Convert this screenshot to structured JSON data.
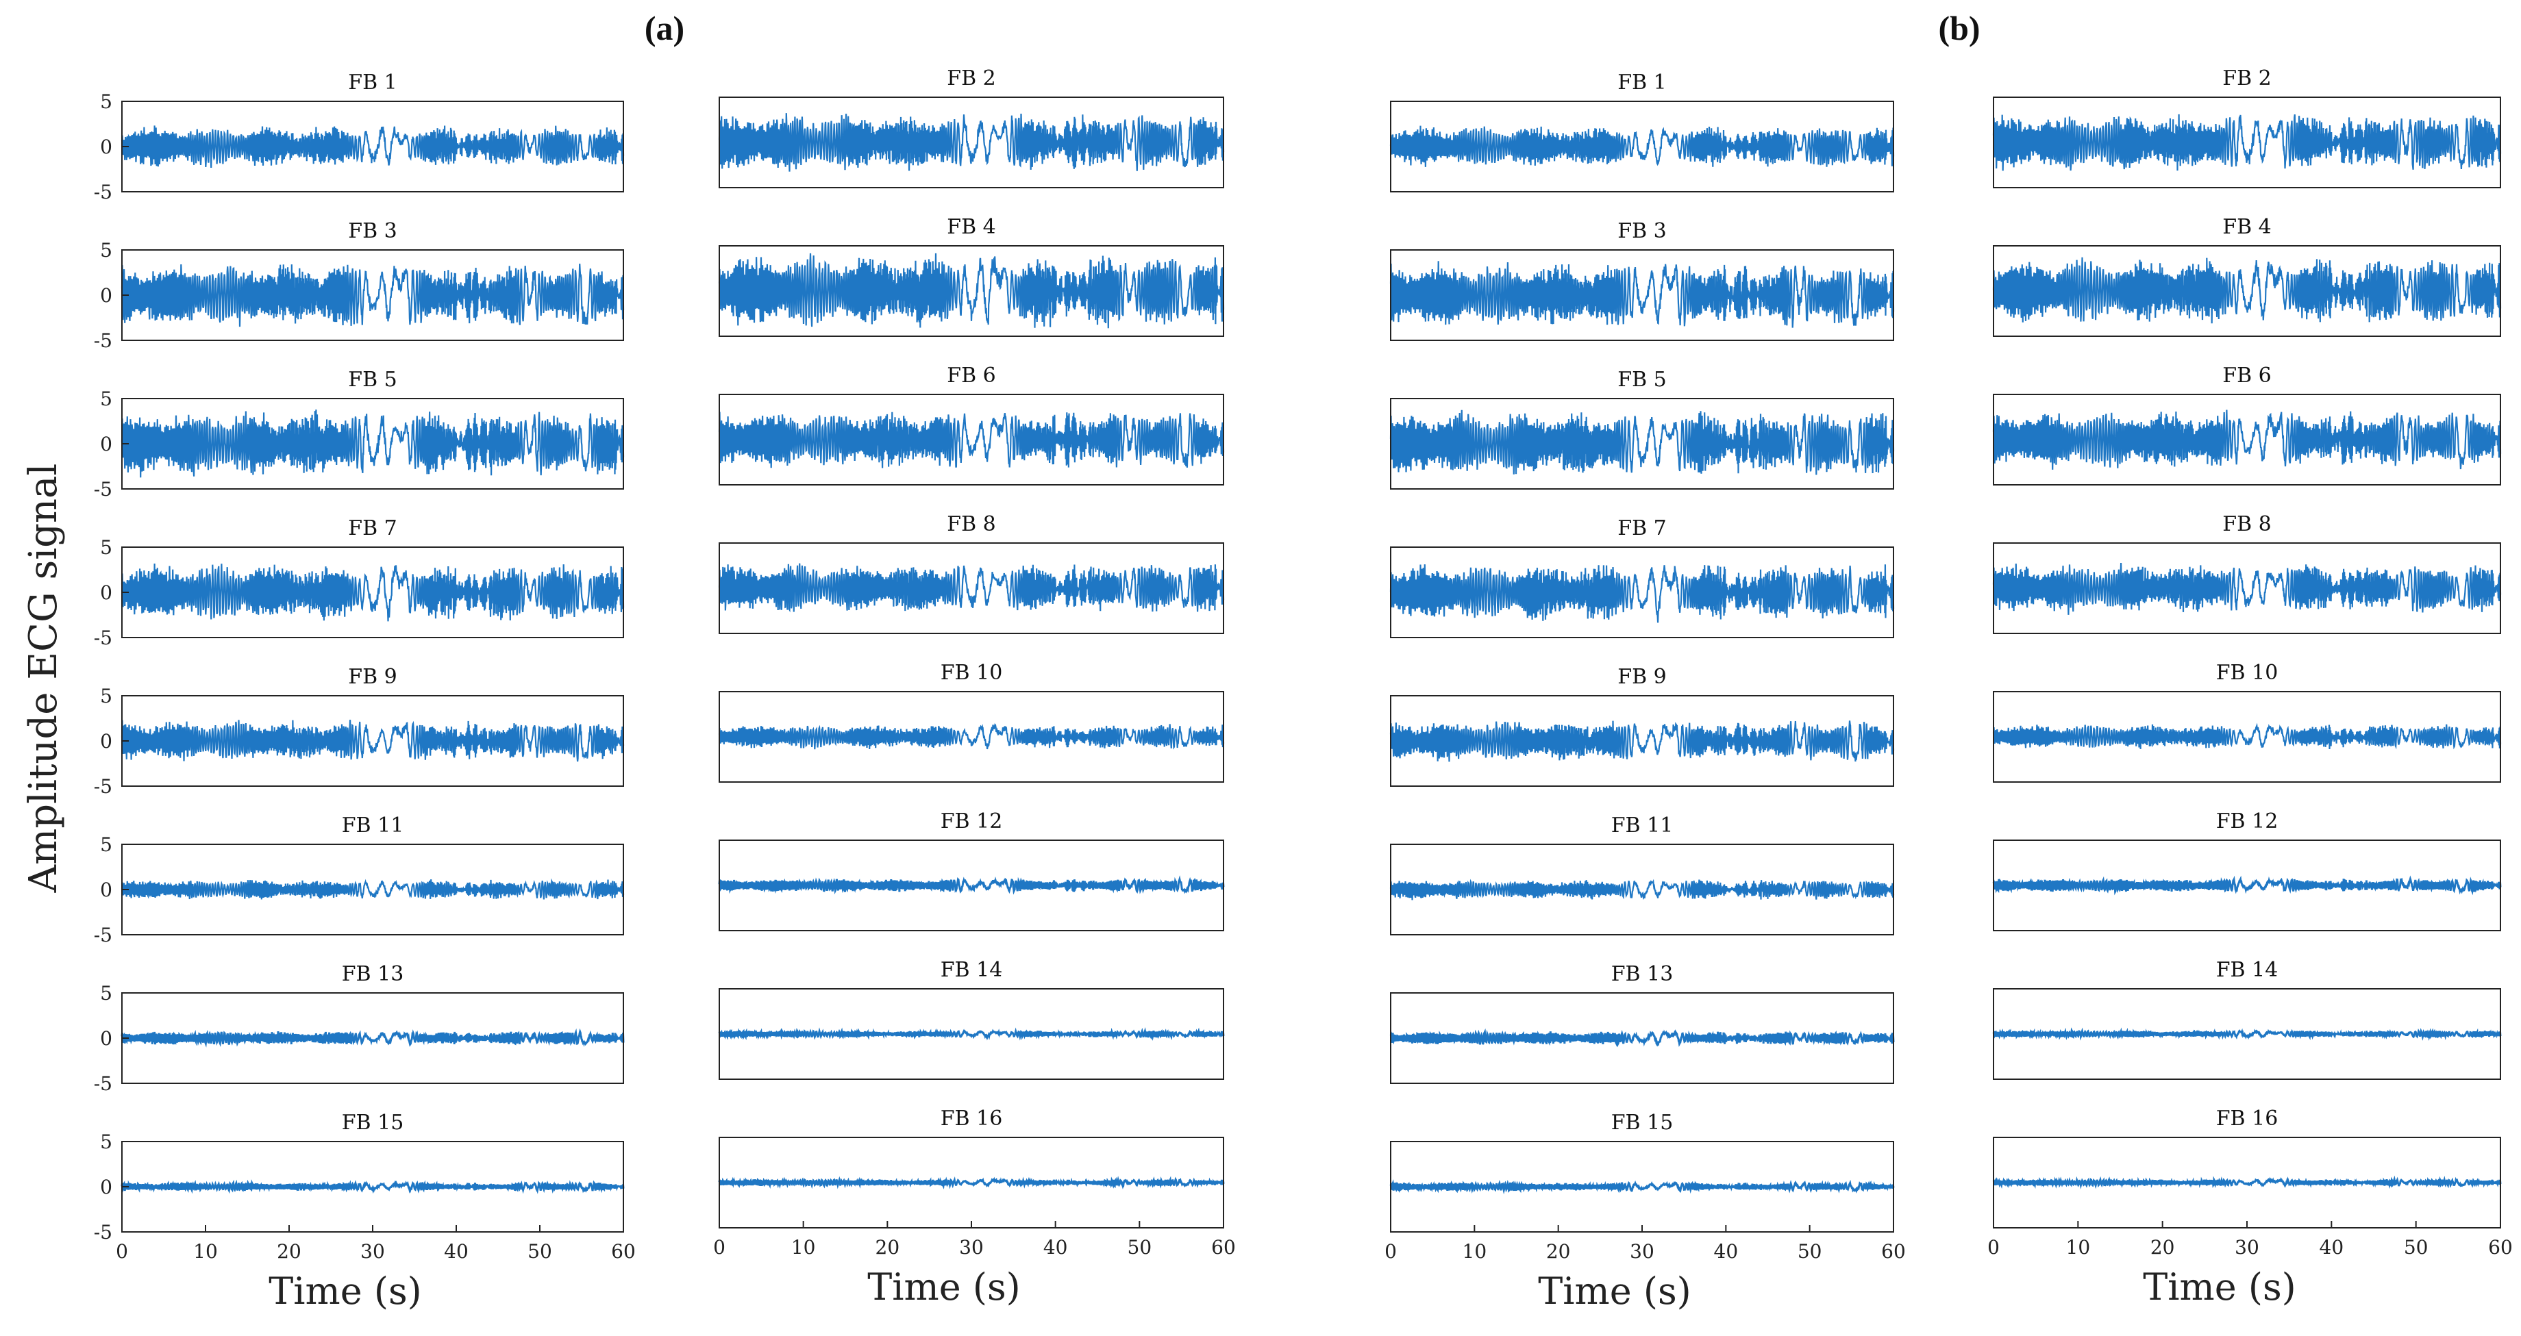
{
  "figure": {
    "panel_a_label": "(a)",
    "panel_b_label": "(b)",
    "ylabel": "Amplitude ECG signal",
    "xlabel": "Time (s)",
    "line_color": "#1f77c4"
  },
  "chart_data": {
    "type": "line",
    "xlabel": "Time (s)",
    "ylabel": "Amplitude ECG signal",
    "xlim": [
      0,
      60
    ],
    "ylim": [
      -5,
      5
    ],
    "xticks": [
      "0",
      "10",
      "20",
      "30",
      "40",
      "50",
      "60"
    ],
    "yticks": [
      "5",
      "0",
      "-5"
    ],
    "grid": false,
    "panels": [
      {
        "label": "(a)",
        "subplots": [
          {
            "title": "FB 1",
            "amplitude": 2.5
          },
          {
            "title": "FB 2",
            "amplitude": 3.5
          },
          {
            "title": "FB 3",
            "amplitude": 4.0
          },
          {
            "title": "FB 4",
            "amplitude": 4.5
          },
          {
            "title": "FB 5",
            "amplitude": 4.0
          },
          {
            "title": "FB 6",
            "amplitude": 3.5
          },
          {
            "title": "FB 7",
            "amplitude": 3.5
          },
          {
            "title": "FB 8",
            "amplitude": 3.0
          },
          {
            "title": "FB 9",
            "amplitude": 2.5
          },
          {
            "title": "FB 10",
            "amplitude": 1.5
          },
          {
            "title": "FB 11",
            "amplitude": 1.2
          },
          {
            "title": "FB 12",
            "amplitude": 0.8
          },
          {
            "title": "FB 13",
            "amplitude": 0.8
          },
          {
            "title": "FB 14",
            "amplitude": 0.4
          },
          {
            "title": "FB 15",
            "amplitude": 0.5
          },
          {
            "title": "FB 16",
            "amplitude": 0.4
          }
        ]
      },
      {
        "label": "(b)",
        "subplots": [
          {
            "title": "FB 1",
            "amplitude": 2.5
          },
          {
            "title": "FB 2",
            "amplitude": 3.5
          },
          {
            "title": "FB 3",
            "amplitude": 4.0
          },
          {
            "title": "FB 4",
            "amplitude": 4.0
          },
          {
            "title": "FB 5",
            "amplitude": 4.0
          },
          {
            "title": "FB 6",
            "amplitude": 3.5
          },
          {
            "title": "FB 7",
            "amplitude": 3.5
          },
          {
            "title": "FB 8",
            "amplitude": 3.0
          },
          {
            "title": "FB 9",
            "amplitude": 2.5
          },
          {
            "title": "FB 10",
            "amplitude": 1.5
          },
          {
            "title": "FB 11",
            "amplitude": 1.2
          },
          {
            "title": "FB 12",
            "amplitude": 0.8
          },
          {
            "title": "FB 13",
            "amplitude": 0.8
          },
          {
            "title": "FB 14",
            "amplitude": 0.4
          },
          {
            "title": "FB 15",
            "amplitude": 0.5
          },
          {
            "title": "FB 16",
            "amplitude": 0.4
          }
        ]
      }
    ]
  }
}
